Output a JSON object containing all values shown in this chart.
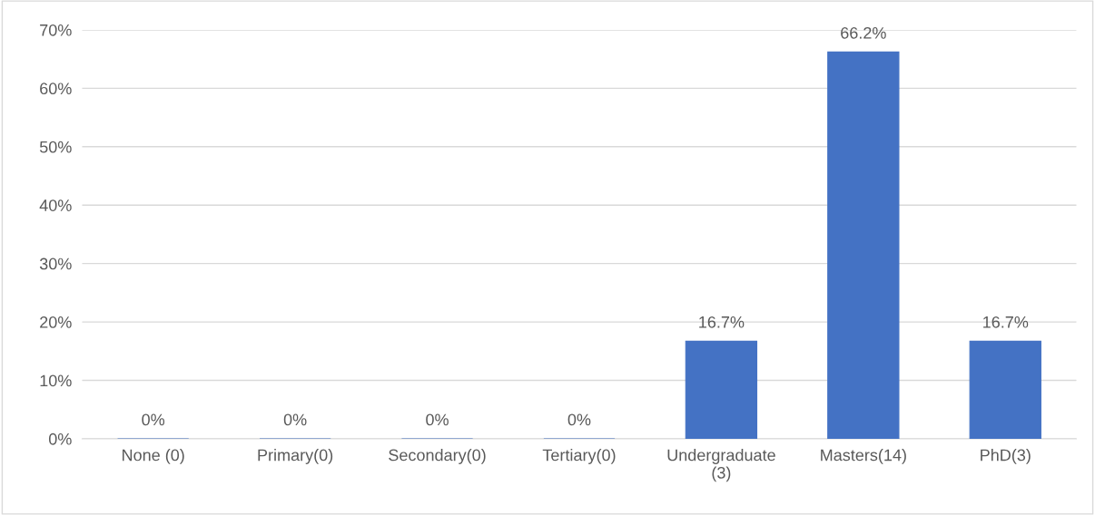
{
  "chart_data": {
    "type": "bar",
    "categories": [
      "None (0)",
      "Primary(0)",
      "Secondary(0)",
      "Tertiary(0)",
      "Undergraduate\n(3)",
      "Masters(14)",
      "PhD(3)"
    ],
    "values": [
      0,
      0,
      0,
      0,
      16.7,
      66.2,
      16.7
    ],
    "value_labels": [
      "0%",
      "0%",
      "0%",
      "0%",
      "16.7%",
      "66.2%",
      "16.7%"
    ],
    "color": "#4472c4",
    "ylim": [
      0,
      70
    ],
    "yticks": [
      {
        "value": 0,
        "label": "0%"
      },
      {
        "value": 10,
        "label": "10%"
      },
      {
        "value": 20,
        "label": "20%"
      },
      {
        "value": 30,
        "label": "30%"
      },
      {
        "value": 40,
        "label": "40%"
      },
      {
        "value": 50,
        "label": "50%"
      },
      {
        "value": 60,
        "label": "60%"
      },
      {
        "value": 70,
        "label": "70%"
      }
    ],
    "grid": "y"
  }
}
